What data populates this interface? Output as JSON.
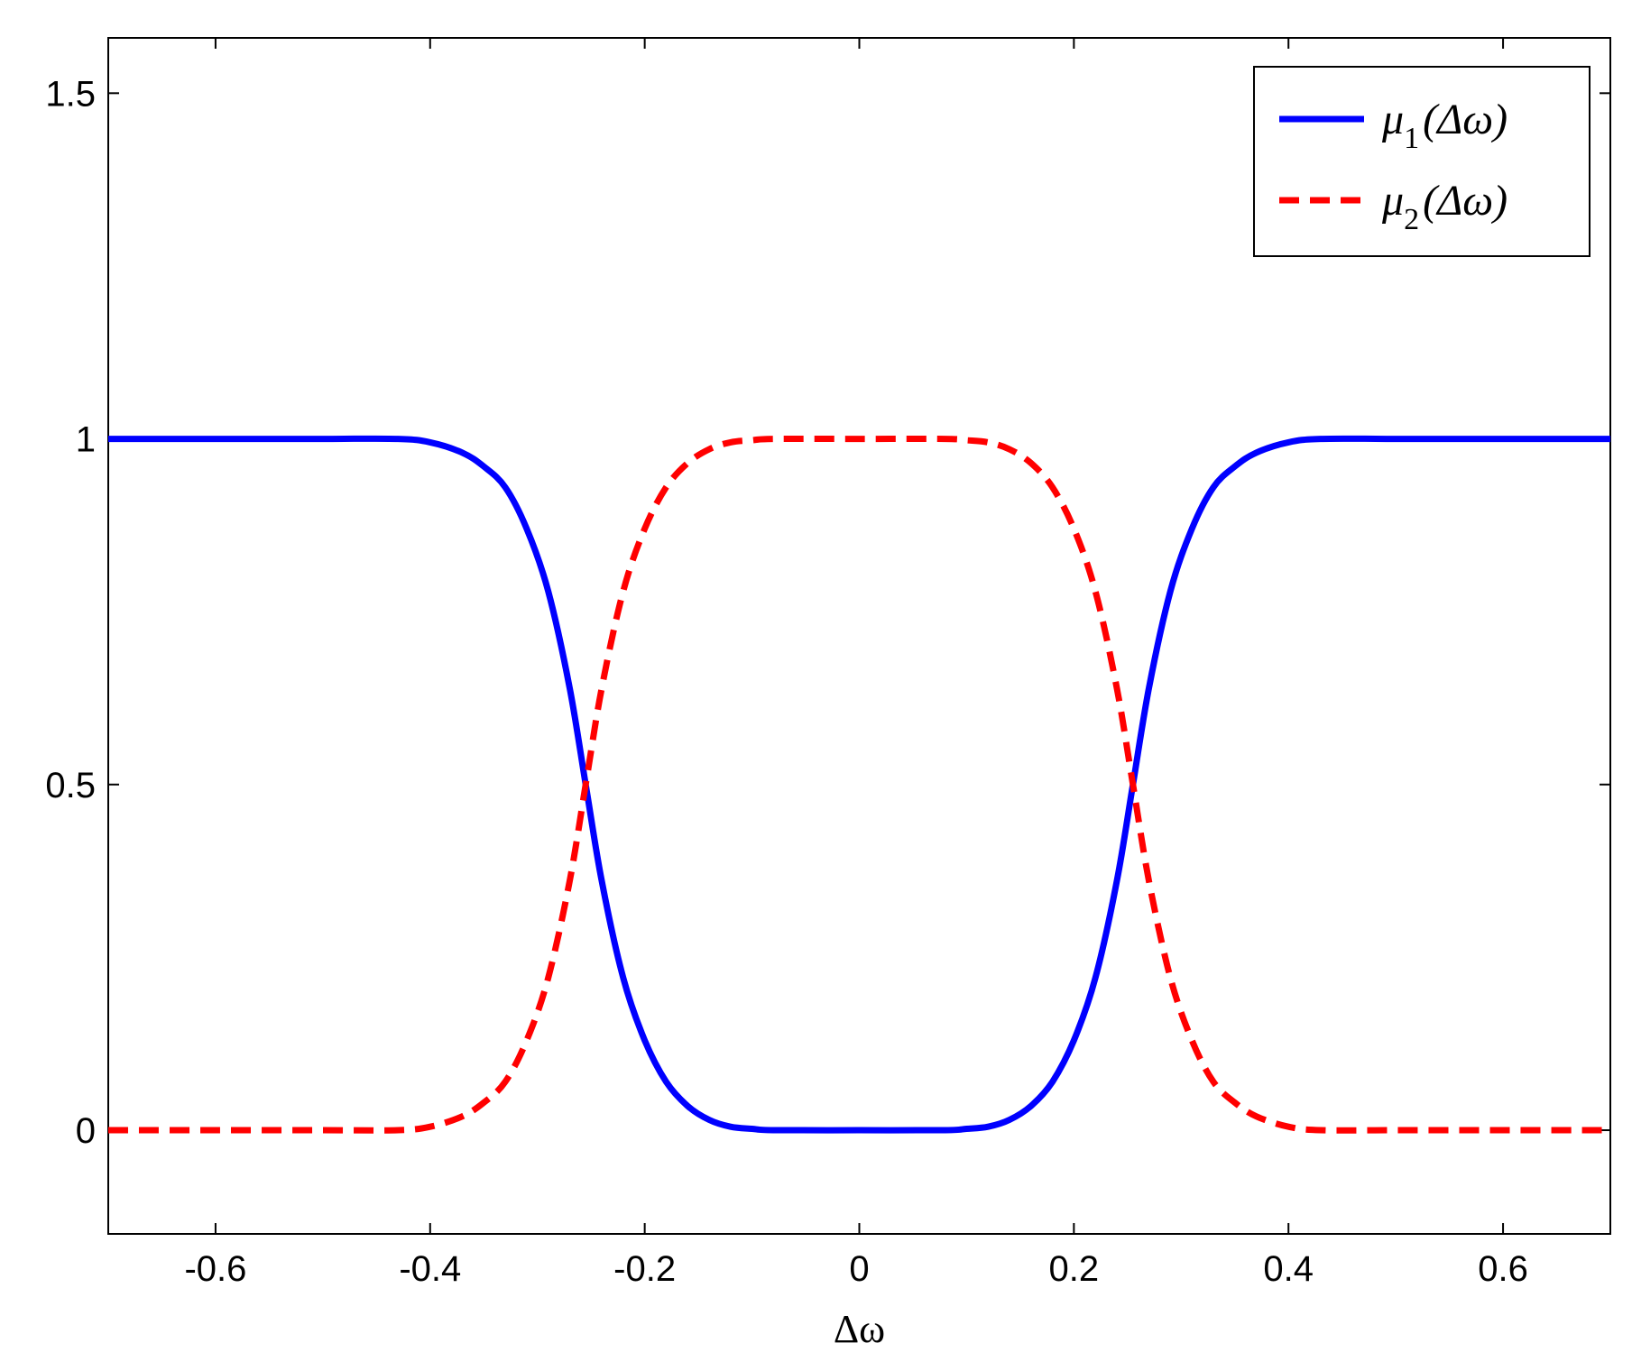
{
  "chart_data": {
    "type": "line",
    "title": "",
    "xlabel": "Δω",
    "ylabel": "",
    "xlim": [
      -0.7,
      0.7
    ],
    "ylim": [
      -0.15,
      1.58
    ],
    "xticks": [
      -0.6,
      -0.4,
      -0.2,
      0,
      0.2,
      0.4,
      0.6
    ],
    "xtick_labels": [
      "-0.6",
      "-0.4",
      "-0.2",
      "0",
      "0.2",
      "0.4",
      "0.6"
    ],
    "yticks": [
      0,
      0.5,
      1,
      1.5
    ],
    "ytick_labels": [
      "0",
      "0.5",
      "1",
      "1.5"
    ],
    "grid": false,
    "legend_position": "top-right",
    "series": [
      {
        "name": "μ1(Δω)",
        "name_main": "μ",
        "name_sub": "1",
        "name_rest": "(Δω)",
        "color": "#0000ff",
        "style": "solid",
        "x": [
          -0.7,
          -0.6,
          -0.5,
          -0.43,
          -0.4,
          -0.37,
          -0.35,
          -0.33,
          -0.31,
          -0.29,
          -0.27,
          -0.255,
          -0.24,
          -0.22,
          -0.2,
          -0.18,
          -0.16,
          -0.14,
          -0.12,
          -0.1,
          -0.08,
          0,
          0.08,
          0.1,
          0.12,
          0.14,
          0.16,
          0.18,
          0.2,
          0.22,
          0.24,
          0.255,
          0.27,
          0.29,
          0.31,
          0.33,
          0.35,
          0.37,
          0.4,
          0.43,
          0.5,
          0.6,
          0.7
        ],
        "values": [
          1,
          1,
          1,
          1,
          0.995,
          0.98,
          0.96,
          0.93,
          0.87,
          0.78,
          0.64,
          0.5,
          0.36,
          0.22,
          0.13,
          0.07,
          0.035,
          0.015,
          0.005,
          0.002,
          0,
          0,
          0,
          0.002,
          0.005,
          0.015,
          0.035,
          0.07,
          0.13,
          0.22,
          0.36,
          0.5,
          0.64,
          0.78,
          0.87,
          0.93,
          0.96,
          0.98,
          0.995,
          1,
          1,
          1,
          1
        ]
      },
      {
        "name": "μ2(Δω)",
        "name_main": "μ",
        "name_sub": "2",
        "name_rest": "(Δω)",
        "color": "#ff0000",
        "style": "dashed",
        "x": [
          -0.7,
          -0.6,
          -0.5,
          -0.43,
          -0.4,
          -0.37,
          -0.35,
          -0.33,
          -0.31,
          -0.29,
          -0.27,
          -0.255,
          -0.24,
          -0.22,
          -0.2,
          -0.18,
          -0.16,
          -0.14,
          -0.12,
          -0.1,
          -0.08,
          0,
          0.08,
          0.1,
          0.12,
          0.14,
          0.16,
          0.18,
          0.2,
          0.22,
          0.24,
          0.255,
          0.27,
          0.29,
          0.31,
          0.33,
          0.35,
          0.37,
          0.4,
          0.43,
          0.5,
          0.6,
          0.7
        ],
        "values": [
          0,
          0,
          0,
          0,
          0.005,
          0.02,
          0.04,
          0.07,
          0.13,
          0.22,
          0.36,
          0.5,
          0.64,
          0.78,
          0.87,
          0.93,
          0.965,
          0.985,
          0.995,
          0.998,
          1,
          1,
          1,
          0.998,
          0.995,
          0.985,
          0.965,
          0.93,
          0.87,
          0.78,
          0.64,
          0.5,
          0.36,
          0.22,
          0.13,
          0.07,
          0.04,
          0.02,
          0.005,
          0,
          0,
          0,
          0
        ]
      }
    ]
  }
}
